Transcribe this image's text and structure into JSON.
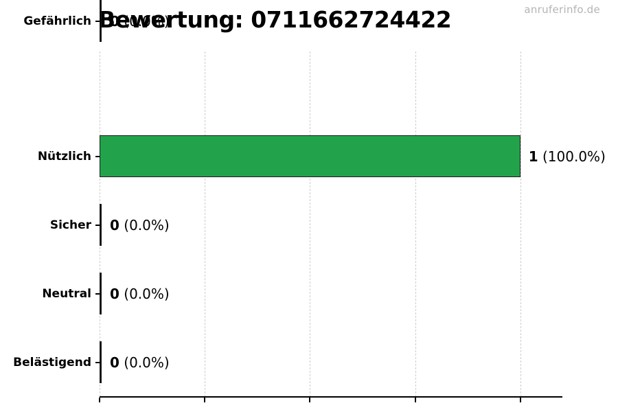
{
  "header": {
    "title": "Bewertung: 0711662724422",
    "watermark": "anruferinfo.de"
  },
  "chart_data": {
    "type": "bar",
    "orientation": "horizontal",
    "title": "Bewertung: 0711662724422",
    "categories": [
      "Nützlich",
      "Sicher",
      "Neutral",
      "Belästigend",
      "Gefährlich"
    ],
    "values": [
      1,
      0,
      0,
      0,
      0
    ],
    "percentages": [
      100.0,
      0.0,
      0.0,
      0.0,
      0.0
    ],
    "annotations": [
      {
        "count": "1",
        "pct": "(100.0%)"
      },
      {
        "count": "0",
        "pct": "(0.0%)"
      },
      {
        "count": "0",
        "pct": "(0.0%)"
      },
      {
        "count": "0",
        "pct": "(0.0%)"
      },
      {
        "count": "0",
        "pct": "(0.0%)"
      }
    ],
    "xlim": [
      0,
      1.1
    ],
    "x_ticks": [
      0,
      0.25,
      0.5,
      0.75,
      1.0
    ],
    "x_tick_labels": [
      "",
      "",
      "",
      "",
      ""
    ],
    "grid": "vertical-dashed",
    "legend": "none",
    "bar_color": "#22a34b",
    "bar_border_color": "#1a1a1a",
    "grid_color": "#cccccc"
  }
}
